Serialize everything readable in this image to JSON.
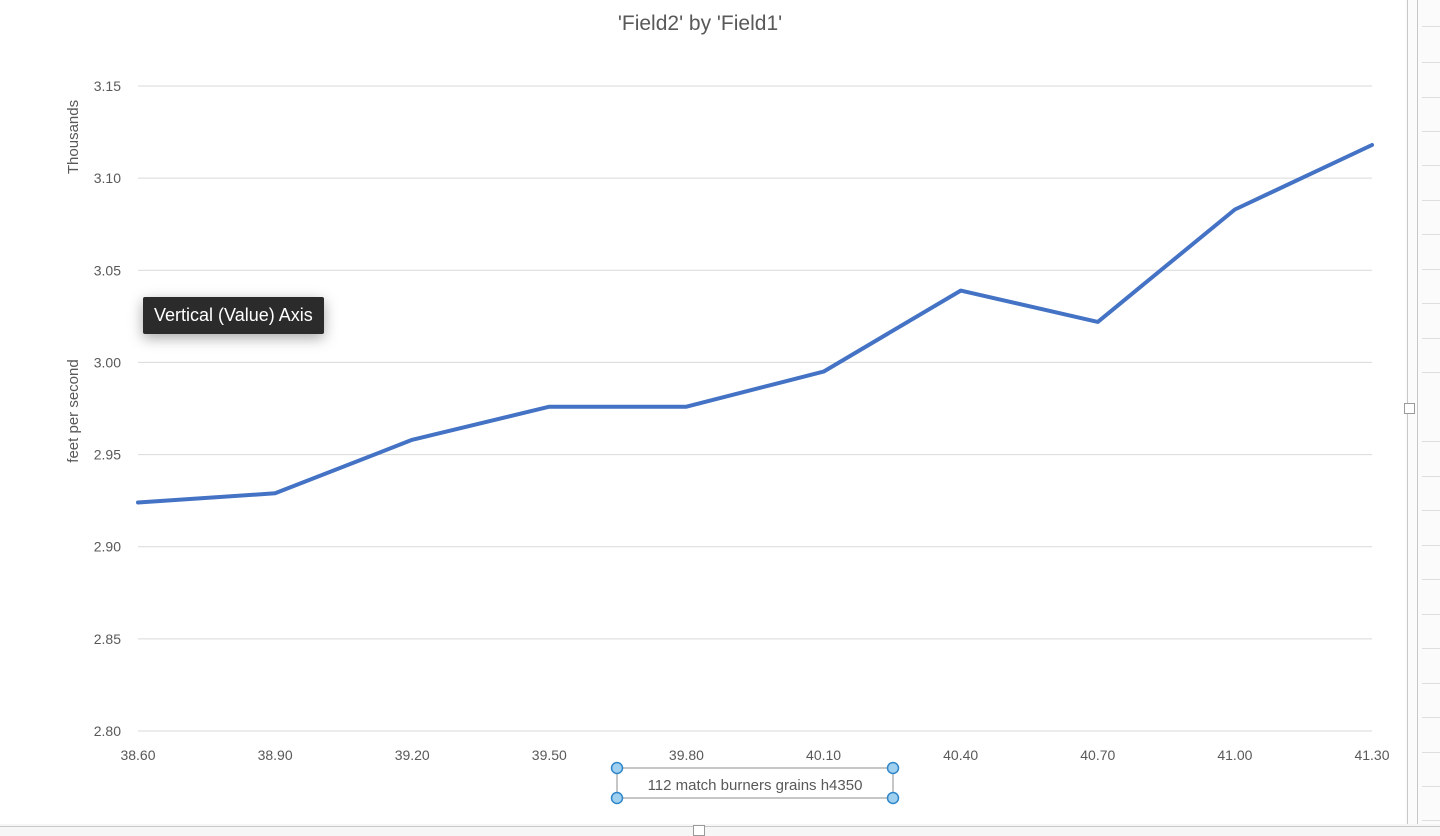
{
  "chart_data": {
    "type": "line",
    "title": "'Field2' by 'Field1'",
    "xlabel": "112 match burners grains h4350",
    "ylabel": "feet per second",
    "y_display_unit": "Thousands",
    "xlim": [
      38.6,
      41.3
    ],
    "ylim": [
      2.8,
      3.15
    ],
    "x_ticks": [
      "38.60",
      "38.90",
      "39.20",
      "39.50",
      "39.80",
      "40.10",
      "40.40",
      "40.70",
      "41.00",
      "41.30"
    ],
    "y_ticks": [
      "3.15",
      "3.10",
      "3.05",
      "3.00",
      "2.95",
      "2.90",
      "2.85",
      "2.80"
    ],
    "y_tick_values": [
      3.15,
      3.1,
      3.05,
      3.0,
      2.95,
      2.9,
      2.85,
      2.8
    ],
    "series": [
      {
        "color": "#4472c4",
        "x": [
          38.6,
          38.9,
          39.2,
          39.5,
          39.8,
          40.1,
          40.4,
          40.7,
          41.0,
          41.3
        ],
        "y": [
          2.924,
          2.929,
          2.958,
          2.976,
          2.976,
          2.995,
          3.039,
          3.022,
          3.083,
          3.118
        ]
      }
    ],
    "grid": true,
    "legend": "none"
  },
  "tooltip": {
    "text": "Vertical (Value) Axis"
  },
  "colors": {
    "series_line": "#4472c4",
    "gridline": "#d9d9d9",
    "text": "#595959",
    "selection_handle_fill": "#9fd0f0",
    "selection_handle_stroke": "#2f86c9",
    "tooltip_bg": "#2b2b2b"
  }
}
